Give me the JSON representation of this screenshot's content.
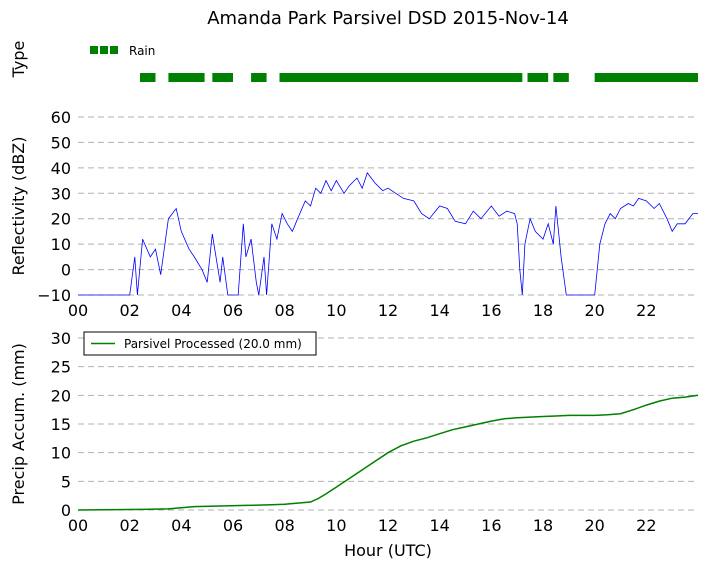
{
  "chart_data": [
    {
      "type": "bar",
      "title": "Amanda Park Parsivel DSD 2015-Nov-14",
      "ylabel": "Type",
      "legend": "top-left",
      "series": [
        {
          "name": "Rain",
          "color": "#008000",
          "intervals": [
            [
              2.4,
              3.0
            ],
            [
              3.5,
              4.9
            ],
            [
              5.2,
              6.0
            ],
            [
              6.7,
              7.3
            ],
            [
              7.8,
              17.2
            ],
            [
              17.4,
              18.2
            ],
            [
              18.4,
              19.0
            ],
            [
              20.0,
              24.0
            ]
          ]
        }
      ]
    },
    {
      "type": "line",
      "ylabel": "Reflectivity (dBZ)",
      "ylim": [
        -10,
        60
      ],
      "xlim": [
        0,
        24
      ],
      "yticks": [
        "60",
        "50",
        "40",
        "30",
        "20",
        "10",
        "0",
        "−10"
      ],
      "xticks": [
        "00",
        "02",
        "04",
        "06",
        "08",
        "10",
        "12",
        "14",
        "16",
        "18",
        "20",
        "22"
      ],
      "grid": "horizontal-dashed",
      "color": "#0000ff",
      "series": [
        {
          "x": [
            0,
            1.9,
            2.0,
            2.2,
            2.3,
            2.5,
            2.8,
            3.0,
            3.2,
            3.5,
            3.8,
            4.0,
            4.3,
            4.5,
            4.8,
            5.0,
            5.2,
            5.5,
            5.6,
            5.8,
            6.0,
            6.2,
            6.4,
            6.5,
            6.7,
            6.9,
            7.0,
            7.2,
            7.3,
            7.5,
            7.7,
            7.9,
            8.1,
            8.3,
            8.5,
            8.8,
            9.0,
            9.2,
            9.4,
            9.6,
            9.8,
            10.0,
            10.3,
            10.5,
            10.8,
            11.0,
            11.2,
            11.5,
            11.8,
            12.0,
            12.3,
            12.6,
            13.0,
            13.3,
            13.6,
            14.0,
            14.3,
            14.6,
            15.0,
            15.3,
            15.6,
            16.0,
            16.3,
            16.6,
            16.9,
            17.0,
            17.1,
            17.2,
            17.3,
            17.5,
            17.7,
            18.0,
            18.2,
            18.4,
            18.5,
            18.7,
            18.9,
            19.5,
            20.0,
            20.2,
            20.4,
            20.6,
            20.8,
            21.0,
            21.3,
            21.5,
            21.7,
            22.0,
            22.3,
            22.5,
            22.8,
            23.0,
            23.2,
            23.5,
            23.8,
            24.0
          ],
          "y": [
            -10,
            -10,
            -10,
            5,
            -10,
            12,
            5,
            8,
            -2,
            20,
            24,
            15,
            8,
            5,
            0,
            -5,
            14,
            -5,
            5,
            -10,
            -10,
            -10,
            18,
            5,
            12,
            -5,
            -10,
            5,
            -10,
            18,
            12,
            22,
            18,
            15,
            20,
            27,
            25,
            32,
            30,
            35,
            31,
            35,
            30,
            33,
            36,
            32,
            38,
            34,
            31,
            32,
            30,
            28,
            27,
            22,
            20,
            25,
            24,
            19,
            18,
            23,
            20,
            25,
            21,
            23,
            22,
            18,
            0,
            -10,
            10,
            20,
            15,
            12,
            18,
            10,
            25,
            5,
            -10,
            -10,
            -10,
            10,
            18,
            22,
            20,
            24,
            26,
            25,
            28,
            27,
            24,
            26,
            20,
            15,
            18,
            18,
            22,
            22
          ]
        }
      ]
    },
    {
      "type": "line",
      "xlabel": "Hour (UTC)",
      "ylabel": "Precip Accum. (mm)",
      "ylim": [
        0,
        30
      ],
      "xlim": [
        0,
        24
      ],
      "yticks": [
        "30",
        "25",
        "20",
        "15",
        "10",
        "5",
        "0"
      ],
      "xticks": [
        "00",
        "02",
        "04",
        "06",
        "08",
        "10",
        "12",
        "14",
        "16",
        "18",
        "20",
        "22"
      ],
      "grid": "horizontal-dashed",
      "legend": "top-left",
      "series": [
        {
          "name": "Parsivel Processed (20.0 mm)",
          "color": "#008000",
          "x": [
            0,
            2.5,
            3.5,
            4.0,
            4.5,
            5.5,
            6.5,
            7.5,
            8.0,
            8.5,
            9.0,
            9.3,
            9.6,
            10.0,
            10.5,
            11.0,
            11.5,
            12.0,
            12.5,
            13.0,
            13.5,
            14.0,
            14.5,
            15.0,
            15.5,
            16.0,
            16.5,
            17.0,
            17.5,
            18.0,
            18.5,
            19.0,
            19.5,
            20.0,
            20.5,
            21.0,
            21.5,
            22.0,
            22.5,
            23.0,
            23.5,
            24.0
          ],
          "y": [
            0,
            0.1,
            0.2,
            0.4,
            0.6,
            0.7,
            0.8,
            0.9,
            1.0,
            1.2,
            1.4,
            2.0,
            2.8,
            4.0,
            5.5,
            7.0,
            8.5,
            10.0,
            11.2,
            12.0,
            12.6,
            13.3,
            14.0,
            14.5,
            15.0,
            15.5,
            15.9,
            16.1,
            16.2,
            16.3,
            16.4,
            16.5,
            16.5,
            16.5,
            16.6,
            16.8,
            17.5,
            18.3,
            19.0,
            19.5,
            19.7,
            20.0
          ]
        }
      ]
    }
  ]
}
